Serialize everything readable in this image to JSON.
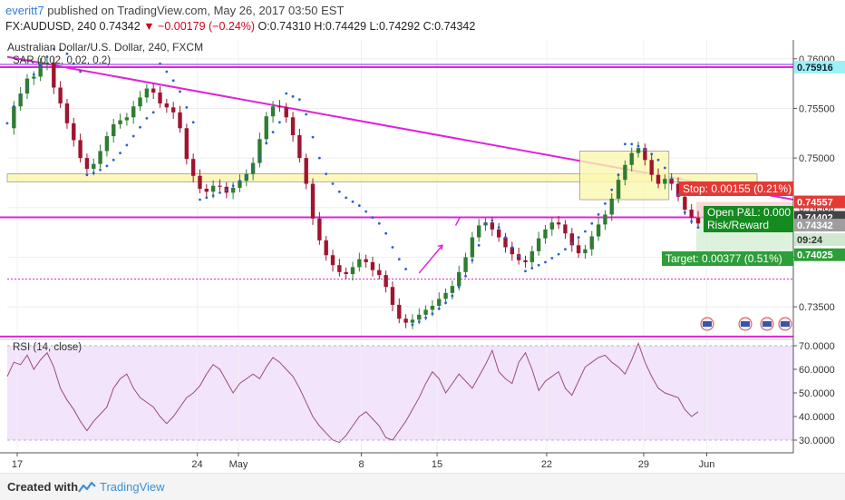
{
  "header": {
    "author": "everitt7",
    "published": "published on TradingView.com, May 26, 2017 03:50 EST",
    "symbol": "FX:AUDUSD, 240",
    "last": "0.74342",
    "change": "▼ −0.00179 (−0.24%)",
    "ohlc": "O:0.74310 H:0.74429 L:0.74292 C:0.74342"
  },
  "colors": {
    "bull": "#2e7d32",
    "bear": "#a0142f",
    "sar": "#2b5fcf",
    "trendline": "#e022d9",
    "zone_fill": "#fbf7b0",
    "rsi_band": "#f2e4fb",
    "rsi_line": "#9a4d78",
    "stop_bg": "#e53935",
    "target_bg": "#4caf50"
  },
  "chart_data": [
    {
      "type": "candlestick",
      "title": "Australian Dollar/U.S. Dollar, 240, FXCM",
      "indicator_label": "SAR (0.02, 0.02, 0.2)",
      "ylim": [
        0.7318,
        0.7618
      ],
      "y_ticks": [
        "0.76000",
        "0.75500",
        "0.75000",
        "0.74500",
        "0.74000",
        "0.73500"
      ],
      "x_ticks": [
        "17",
        "24",
        "May",
        "8",
        "15",
        "22",
        "29",
        "Jun"
      ],
      "series": [
        {
          "name": "Close",
          "values": [
            0.753,
            0.7552,
            0.7565,
            0.758,
            0.7582,
            0.7594,
            0.7596,
            0.7571,
            0.7555,
            0.7535,
            0.7518,
            0.75,
            0.7489,
            0.7494,
            0.7507,
            0.7522,
            0.7534,
            0.7538,
            0.7541,
            0.7552,
            0.7561,
            0.757,
            0.7566,
            0.7555,
            0.7551,
            0.7546,
            0.753,
            0.7499,
            0.7482,
            0.7469,
            0.7466,
            0.7472,
            0.7471,
            0.7465,
            0.747,
            0.7477,
            0.7484,
            0.7495,
            0.7519,
            0.7542,
            0.7552,
            0.7551,
            0.7541,
            0.7523,
            0.75,
            0.7474,
            0.7439,
            0.7417,
            0.7402,
            0.7392,
            0.7385,
            0.7383,
            0.739,
            0.7398,
            0.7395,
            0.7387,
            0.7382,
            0.737,
            0.7352,
            0.7338,
            0.7334,
            0.7337,
            0.7342,
            0.7347,
            0.7351,
            0.7358,
            0.7364,
            0.7371,
            0.7385,
            0.74,
            0.742,
            0.7432,
            0.7435,
            0.7428,
            0.742,
            0.741,
            0.7403,
            0.7397,
            0.7395,
            0.7406,
            0.7419,
            0.7428,
            0.7435,
            0.7433,
            0.7424,
            0.7412,
            0.7404,
            0.7408,
            0.7421,
            0.7433,
            0.7443,
            0.7459,
            0.7478,
            0.7493,
            0.7505,
            0.751,
            0.7498,
            0.7483,
            0.7474,
            0.7479,
            0.7474,
            0.7461,
            0.7448,
            0.744,
            0.7434
          ]
        },
        {
          "name": "SAR",
          "values": [
            0.7535,
            0.7552,
            0.7563,
            0.7572,
            0.7584,
            0.7593,
            0.7602,
            0.761,
            0.7609,
            0.7605,
            0.7595,
            0.7587,
            0.7483,
            0.7485,
            0.7488,
            0.7492,
            0.7498,
            0.7505,
            0.7513,
            0.7522,
            0.7531,
            0.754,
            0.7546,
            0.7595,
            0.7587,
            0.7578,
            0.7567,
            0.7551,
            0.7536,
            0.7458,
            0.746,
            0.7462,
            0.7465,
            0.7468,
            0.7472,
            0.7477,
            0.7482,
            0.749,
            0.7502,
            0.7515,
            0.7526,
            0.7536,
            0.7565,
            0.7562,
            0.7559,
            0.7544,
            0.7521,
            0.75,
            0.7484,
            0.7474,
            0.7466,
            0.746,
            0.7456,
            0.7452,
            0.7446,
            0.744,
            0.7434,
            0.7424,
            0.741,
            0.7398,
            0.7388,
            0.7332,
            0.7335,
            0.7339,
            0.7343,
            0.7348,
            0.7354,
            0.7361,
            0.737,
            0.7381,
            0.7397,
            0.7412,
            0.7434,
            0.7437,
            0.743,
            0.742,
            0.741,
            0.7401,
            0.7386,
            0.7389,
            0.7392,
            0.7395,
            0.7399,
            0.7403,
            0.7408,
            0.7414,
            0.742,
            0.7426,
            0.7434,
            0.7443,
            0.7454,
            0.7468,
            0.7483,
            0.7514,
            0.7514,
            0.7512,
            0.7508,
            0.7504,
            0.7498,
            0.749,
            0.7479,
            0.7463,
            0.7445,
            0.7436,
            0.743
          ]
        }
      ],
      "horizontal_lines": [
        0.75916,
        0.74402,
        0.7378,
        0.732
      ],
      "trendline": {
        "from": 0.7602,
        "to": 0.7458
      },
      "zones": [
        [
          0.7476,
          0.7484
        ],
        [
          0.7458,
          0.7507
        ]
      ],
      "position": {
        "entry": 0.74402,
        "stop": 0.74557,
        "target": 0.74025
      },
      "price_labels": {
        "trend_cross": "0.74557",
        "level": "0.74402",
        "last": "0.74342",
        "countdown": "09:24",
        "target": "0.74025",
        "upper_line": "0.75916"
      },
      "position_labels": {
        "stop": "Stop: 0.00155 (0.21%)",
        "open_pl": "Open P&L: 0.000",
        "risk_reward": "Risk/Reward",
        "target": "Target: 0.00377 (0.51%)"
      }
    },
    {
      "type": "line",
      "title": "RSI (14, close)",
      "ylim": [
        25,
        72
      ],
      "y_ticks": [
        "70.0000",
        "60.0000",
        "50.0000",
        "40.0000",
        "30.0000"
      ],
      "band": [
        30,
        70
      ],
      "series": [
        {
          "name": "RSI",
          "values": [
            57,
            63,
            62,
            66,
            60,
            64,
            67,
            61,
            52,
            47,
            43,
            38,
            34,
            38,
            41,
            44,
            52,
            56,
            58,
            52,
            48,
            46,
            44,
            40,
            37,
            40,
            44,
            48,
            50,
            53,
            58,
            62,
            60,
            55,
            50,
            54,
            56,
            58,
            56,
            61,
            65,
            63,
            60,
            57,
            52,
            46,
            40,
            36,
            33,
            30,
            29,
            32,
            36,
            40,
            42,
            39,
            36,
            31,
            30,
            34,
            38,
            43,
            48,
            54,
            59,
            56,
            50,
            54,
            58,
            55,
            52,
            57,
            62,
            68,
            59,
            56,
            54,
            63,
            67,
            60,
            51,
            55,
            57,
            59,
            52,
            49,
            55,
            61,
            63,
            65,
            66,
            63,
            61,
            58,
            64,
            71,
            63,
            57,
            52,
            50,
            49,
            48,
            43,
            40,
            42
          ]
        }
      ]
    }
  ],
  "footer": {
    "created_with": "Created with",
    "brand": "TradingView"
  }
}
